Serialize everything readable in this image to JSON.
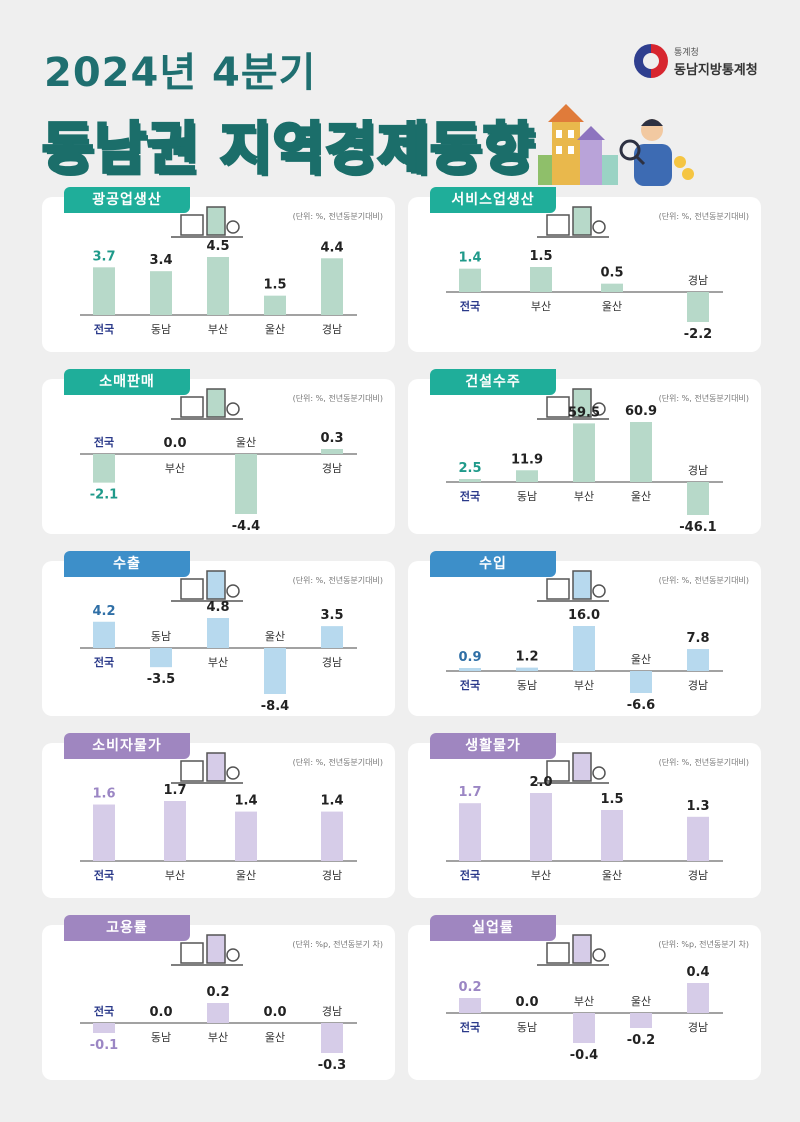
{
  "header": {
    "subtitle": "2024년 4분기",
    "title": "동남권 지역경제동향",
    "logo_small": "통계청",
    "logo_name": "동남지방통계청"
  },
  "colors": {
    "teal": "#1fae9a",
    "teal_bar": "#b7d9c9",
    "teal_text": "#1f9a8a",
    "blue": "#3d8fc9",
    "blue_bar": "#b7d9ee",
    "blue_text": "#2f6fa6",
    "purple": "#9f86c0",
    "purple_bar": "#d6cce8",
    "purple_text": "#9b86c4",
    "navy": "#2b3a8a",
    "dark": "#222222"
  },
  "panels": [
    {
      "id": "industrial",
      "tag": "광공업생산",
      "unit": "(단위: %, 전년동분기대비)",
      "theme": "teal",
      "chart_data": {
        "type": "bar",
        "categories": [
          "전국",
          "동남",
          "부산",
          "울산",
          "경남"
        ],
        "values": [
          3.7,
          3.4,
          4.5,
          1.5,
          4.4
        ],
        "labels": [
          "3.7",
          "3.4",
          "4.5",
          "1.5",
          "4.4"
        ]
      }
    },
    {
      "id": "service",
      "tag": "서비스업생산",
      "unit": "(단위: %, 전년동분기대비)",
      "theme": "teal",
      "chart_data": {
        "type": "bar",
        "categories": [
          "전국",
          "부산",
          "울산",
          "경남"
        ],
        "values": [
          1.4,
          1.5,
          0.5,
          -2.2
        ],
        "labels": [
          "1.4",
          "1.5",
          "0.5",
          "-2.2"
        ]
      }
    },
    {
      "id": "retail",
      "tag": "소매판매",
      "unit": "(단위: %, 전년동분기대비)",
      "theme": "teal",
      "chart_data": {
        "type": "bar",
        "categories": [
          "전국",
          "부산",
          "울산",
          "경남"
        ],
        "values": [
          -2.1,
          0.0,
          -4.4,
          0.3
        ],
        "labels": [
          "-2.1",
          "0.0",
          "-4.4",
          "0.3"
        ]
      }
    },
    {
      "id": "construction",
      "tag": "건설수주",
      "unit": "(단위: %, 전년동분기대비)",
      "theme": "teal",
      "chart_data": {
        "type": "bar",
        "categories": [
          "전국",
          "동남",
          "부산",
          "울산",
          "경남"
        ],
        "values": [
          2.5,
          11.9,
          59.5,
          60.9,
          -46.1
        ],
        "labels": [
          "2.5",
          "11.9",
          "59.5",
          "60.9",
          "-46.1"
        ]
      }
    },
    {
      "id": "export",
      "tag": "수출",
      "unit": "(단위: %, 전년동분기대비)",
      "theme": "blue",
      "chart_data": {
        "type": "bar",
        "categories": [
          "전국",
          "동남",
          "부산",
          "울산",
          "경남"
        ],
        "values": [
          4.2,
          -3.5,
          4.8,
          -8.4,
          3.5
        ],
        "labels": [
          "4.2",
          "-3.5",
          "4.8",
          "-8.4",
          "3.5"
        ]
      }
    },
    {
      "id": "import",
      "tag": "수입",
      "unit": "(단위: %, 전년동분기대비)",
      "theme": "blue",
      "chart_data": {
        "type": "bar",
        "categories": [
          "전국",
          "동남",
          "부산",
          "울산",
          "경남"
        ],
        "values": [
          0.9,
          1.2,
          16.0,
          -6.6,
          7.8
        ],
        "labels": [
          "0.9",
          "1.2",
          "16.0",
          "-6.6",
          "7.8"
        ]
      }
    },
    {
      "id": "cpi",
      "tag": "소비자물가",
      "unit": "(단위: %, 전년동분기대비)",
      "theme": "purple",
      "chart_data": {
        "type": "bar",
        "categories": [
          "전국",
          "부산",
          "울산",
          "경남"
        ],
        "values": [
          1.6,
          1.7,
          1.4,
          1.4
        ],
        "labels": [
          "1.6",
          "1.7",
          "1.4",
          "1.4"
        ]
      }
    },
    {
      "id": "living",
      "tag": "생활물가",
      "unit": "(단위: %, 전년동분기대비)",
      "theme": "purple",
      "chart_data": {
        "type": "bar",
        "categories": [
          "전국",
          "부산",
          "울산",
          "경남"
        ],
        "values": [
          1.7,
          2.0,
          1.5,
          1.3
        ],
        "labels": [
          "1.7",
          "2.0",
          "1.5",
          "1.3"
        ]
      }
    },
    {
      "id": "employment",
      "tag": "고용률",
      "unit": "(단위: %p, 전년동분기 차)",
      "theme": "purple",
      "chart_data": {
        "type": "bar",
        "categories": [
          "전국",
          "동남",
          "부산",
          "울산",
          "경남"
        ],
        "values": [
          -0.1,
          0.0,
          0.2,
          0.0,
          -0.3
        ],
        "labels": [
          "-0.1",
          "0.0",
          "0.2",
          "0.0",
          "-0.3"
        ]
      }
    },
    {
      "id": "unemployment",
      "tag": "실업률",
      "unit": "(단위: %p, 전년동분기 차)",
      "theme": "purple",
      "chart_data": {
        "type": "bar",
        "categories": [
          "전국",
          "동남",
          "부산",
          "울산",
          "경남"
        ],
        "values": [
          0.2,
          0.0,
          -0.4,
          -0.2,
          0.4
        ],
        "labels": [
          "0.2",
          "0.0",
          "-0.4",
          "-0.2",
          "0.4"
        ]
      }
    }
  ]
}
